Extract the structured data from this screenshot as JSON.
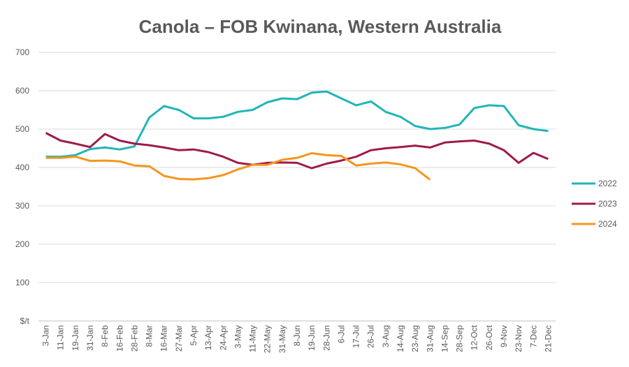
{
  "chart_data": {
    "type": "line",
    "title": "Canola – FOB Kwinana, Western Australia",
    "categories": [
      "3-Jan",
      "11-Jan",
      "19-Jan",
      "31-Jan",
      "8-Feb",
      "16-Feb",
      "28-Feb",
      "8-Mar",
      "16-Mar",
      "27-Mar",
      "5-Apr",
      "13-Apr",
      "24-Apr",
      "3-May",
      "11-May",
      "22-May",
      "31-May",
      "8-Jun",
      "19-Jun",
      "28-Jun",
      "6-Jul",
      "17-Jul",
      "26-Jul",
      "3-Aug",
      "14-Aug",
      "23-Aug",
      "31-Aug",
      "14-Sep",
      "28-Sep",
      "12-Oct",
      "26-Oct",
      "9-Nov",
      "23-Nov",
      "7-Dec",
      "21-Dec"
    ],
    "series": [
      {
        "name": "2022",
        "color": "#1fb5b9",
        "values": [
          428,
          428,
          432,
          448,
          452,
          447,
          455,
          530,
          560,
          550,
          528,
          528,
          532,
          545,
          550,
          570,
          580,
          578,
          595,
          598,
          580,
          562,
          572,
          545,
          532,
          508,
          500,
          503,
          512,
          555,
          562,
          560,
          510,
          500,
          495
        ]
      },
      {
        "name": "2023",
        "color": "#9e1b4a",
        "values": [
          490,
          470,
          462,
          453,
          487,
          470,
          462,
          458,
          452,
          445,
          447,
          440,
          428,
          412,
          407,
          412,
          413,
          412,
          398,
          410,
          418,
          428,
          445,
          450,
          453,
          457,
          452,
          465,
          468,
          470,
          462,
          445,
          412,
          438,
          422
        ]
      },
      {
        "name": "2024",
        "color": "#f5961d",
        "values": [
          425,
          425,
          428,
          417,
          418,
          416,
          405,
          403,
          378,
          370,
          369,
          372,
          380,
          395,
          407,
          407,
          420,
          425,
          437,
          432,
          430,
          405,
          410,
          413,
          408,
          398,
          368,
          null,
          null,
          null,
          null,
          null,
          null,
          null,
          null
        ]
      }
    ],
    "ylim": [
      0,
      700
    ],
    "yticks": [
      {
        "value": 0,
        "label": "$/t"
      },
      100,
      200,
      300,
      400,
      500,
      600,
      700
    ],
    "grid": true,
    "legend": "right"
  }
}
